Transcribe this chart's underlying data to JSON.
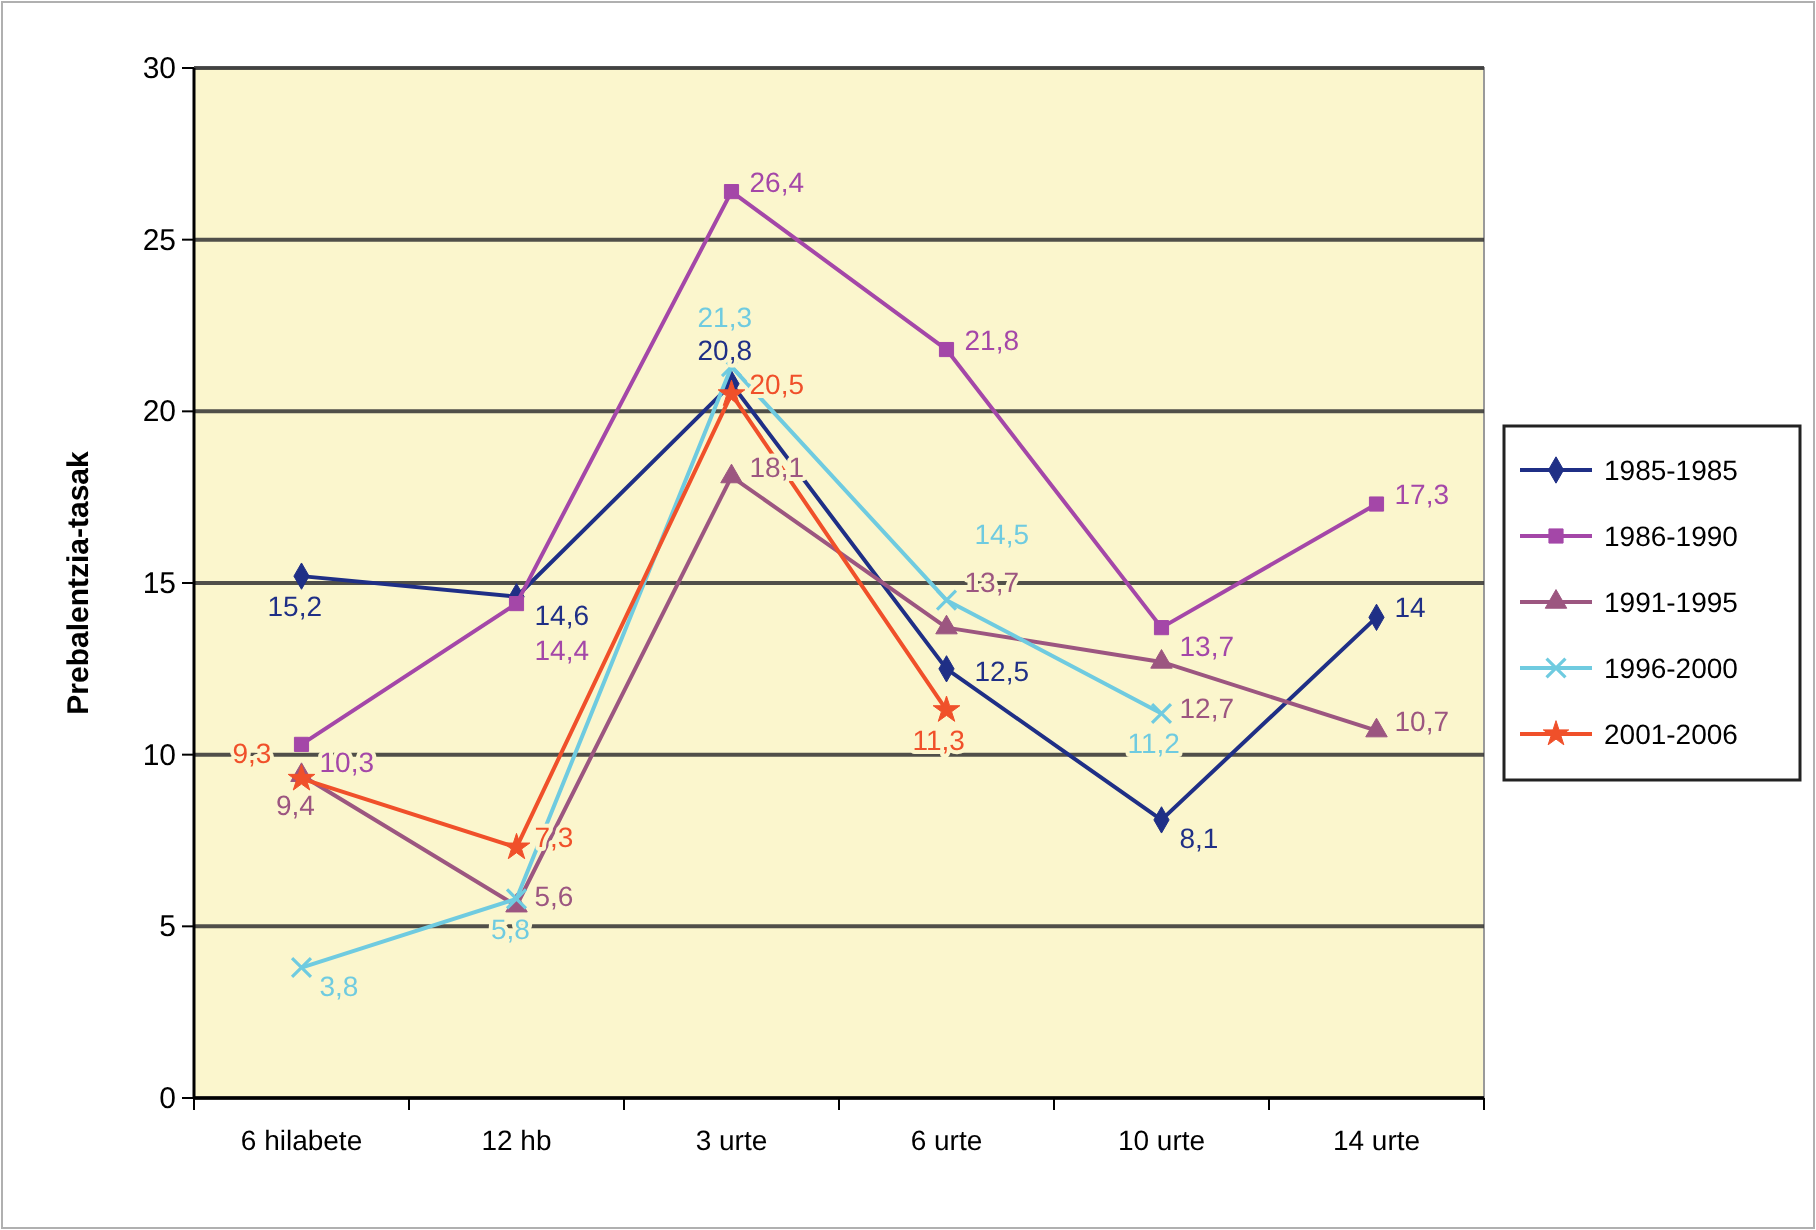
{
  "chart_data": {
    "type": "line",
    "ylabel": "Prebalentzia-tasak",
    "categories": [
      "6 hilabete",
      "12 hb",
      "3 urte",
      "6 urte",
      "10 urte",
      "14 urte"
    ],
    "series": [
      {
        "name": "1985-1985",
        "color": "#1f2f86",
        "marker": "diamond",
        "values": [
          15.2,
          14.6,
          20.8,
          12.5,
          8.1,
          14
        ],
        "value_labels": [
          "15,2",
          "14,6",
          "20,8",
          "12,5",
          "8,1",
          "14"
        ]
      },
      {
        "name": "1986-1990",
        "color": "#a447a8",
        "marker": "square",
        "values": [
          10.3,
          14.4,
          26.4,
          21.8,
          13.7,
          17.3
        ],
        "value_labels": [
          "10,3",
          "14,4",
          "26,4",
          "21,8",
          "13,7",
          "17,3"
        ]
      },
      {
        "name": "1991-1995",
        "color": "#9c5680",
        "marker": "triangle",
        "values": [
          9.4,
          5.6,
          18.1,
          13.7,
          12.7,
          10.7
        ],
        "value_labels": [
          "9,4",
          "5,6",
          "18,1",
          "13,7",
          "12,7",
          "10,7"
        ]
      },
      {
        "name": "1996-2000",
        "color": "#6fcbe0",
        "marker": "cross",
        "values": [
          3.8,
          5.8,
          21.3,
          14.5,
          11.2,
          null
        ],
        "value_labels": [
          "3,8",
          "5,8",
          "21,3",
          "14,5",
          "11,2",
          null
        ]
      },
      {
        "name": "2001-2006",
        "color": "#f0502a",
        "marker": "star",
        "values": [
          9.3,
          7.3,
          20.5,
          11.3,
          null,
          null
        ],
        "value_labels": [
          "9,3",
          "7,3",
          "20,5",
          "11,3",
          null,
          null
        ]
      }
    ],
    "ylim": [
      0,
      30
    ],
    "yticks": [
      0,
      5,
      10,
      15,
      20,
      25,
      30
    ],
    "grid": "y",
    "legend": "right"
  }
}
